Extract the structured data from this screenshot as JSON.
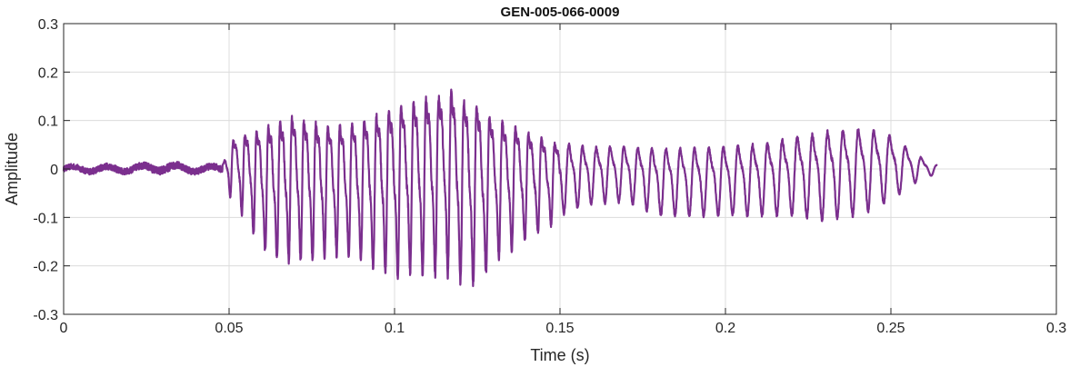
{
  "chart_data": {
    "type": "line",
    "title": "GEN-005-066-0009",
    "xlabel": "Time (s)",
    "ylabel": "Amplitude",
    "xlim": [
      0,
      0.3
    ],
    "ylim": [
      -0.3,
      0.3
    ],
    "xticks": [
      0,
      0.05,
      0.1,
      0.15,
      0.2,
      0.25,
      0.3
    ],
    "xtick_labels": [
      "0",
      "0.05",
      "0.1",
      "0.15",
      "0.2",
      "0.25",
      "0.3"
    ],
    "yticks": [
      -0.3,
      -0.2,
      -0.1,
      0,
      0.1,
      0.2,
      0.3
    ],
    "ytick_labels": [
      "-0.3",
      "-0.2",
      "-0.1",
      "0",
      "0.1",
      "0.2",
      "0.3"
    ],
    "grid": true,
    "box": true,
    "series": [
      {
        "color": "#7b2f8e",
        "x": [
          0,
          0.01,
          0.02,
          0.03,
          0.04,
          0.048,
          0.05,
          0.055,
          0.06,
          0.065,
          0.07,
          0.075,
          0.08,
          0.085,
          0.09,
          0.095,
          0.1,
          0.105,
          0.11,
          0.115,
          0.118,
          0.12,
          0.125,
          0.127,
          0.13,
          0.135,
          0.14,
          0.145,
          0.15,
          0.155,
          0.16,
          0.17,
          0.18,
          0.19,
          0.2,
          0.21,
          0.22,
          0.23,
          0.24,
          0.245,
          0.25,
          0.255,
          0.26,
          0.264
        ],
        "envelope_max": [
          0.01,
          0.012,
          0.012,
          0.018,
          0.012,
          0.012,
          0.07,
          0.1,
          0.12,
          0.14,
          0.155,
          0.14,
          0.13,
          0.13,
          0.14,
          0.16,
          0.18,
          0.19,
          0.2,
          0.21,
          0.22,
          0.2,
          0.19,
          0.17,
          0.15,
          0.13,
          0.11,
          0.09,
          0.075,
          0.065,
          0.06,
          0.06,
          0.06,
          0.06,
          0.065,
          0.07,
          0.085,
          0.1,
          0.105,
          0.1,
          0.085,
          0.055,
          0.025,
          0.01
        ],
        "envelope_min": [
          -0.01,
          -0.012,
          -0.012,
          -0.012,
          -0.012,
          -0.012,
          -0.05,
          -0.1,
          -0.16,
          -0.18,
          -0.18,
          -0.18,
          -0.17,
          -0.17,
          -0.18,
          -0.2,
          -0.21,
          -0.2,
          -0.21,
          -0.2,
          -0.22,
          -0.22,
          -0.23,
          -0.21,
          -0.18,
          -0.16,
          -0.14,
          -0.12,
          -0.1,
          -0.085,
          -0.075,
          -0.07,
          -0.1,
          -0.1,
          -0.1,
          -0.1,
          -0.1,
          -0.11,
          -0.1,
          -0.085,
          -0.07,
          -0.04,
          -0.02,
          -0.01
        ]
      }
    ]
  }
}
